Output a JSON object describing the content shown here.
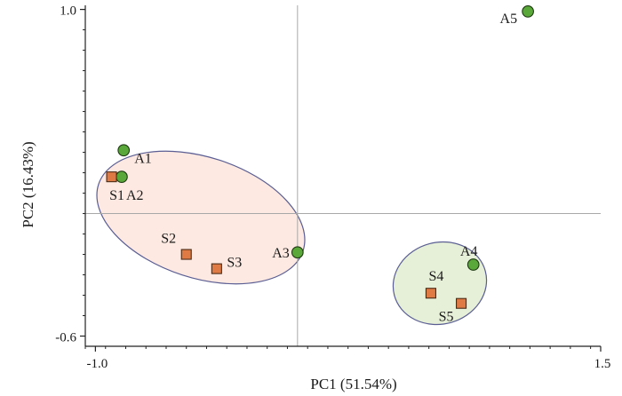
{
  "chart_data": {
    "type": "scatter",
    "title": "",
    "xlabel": "PC1 (51.54%)",
    "ylabel": "PC2 (16.43%)",
    "xlim": [
      -1.05,
      1.5
    ],
    "ylim": [
      -0.65,
      1.02
    ],
    "x_ticks": [
      {
        "value": -1.0,
        "label": "-1.0"
      },
      {
        "value": 1.5,
        "label": "1.5"
      }
    ],
    "y_ticks": [
      {
        "value": 1.0,
        "label": "1.0"
      },
      {
        "value": -0.6,
        "label": "-0.6"
      }
    ],
    "grid": false,
    "reference_lines": {
      "x": 0.0,
      "y": 0.0
    },
    "series": [
      {
        "marker": "circle",
        "color": "#5aa83a",
        "points": [
          {
            "label": "A1",
            "x": -0.86,
            "y": 0.31
          },
          {
            "label": "A2",
            "x": -0.87,
            "y": 0.18
          },
          {
            "label": "A3",
            "x": 0.0,
            "y": -0.19
          },
          {
            "label": "A4",
            "x": 0.87,
            "y": -0.25
          },
          {
            "label": "A5",
            "x": 1.14,
            "y": 0.99
          }
        ]
      },
      {
        "marker": "square",
        "color": "#e07a45",
        "points": [
          {
            "label": "S1",
            "x": -0.92,
            "y": 0.18
          },
          {
            "label": "S2",
            "x": -0.55,
            "y": -0.2
          },
          {
            "label": "S3",
            "x": -0.4,
            "y": -0.27
          },
          {
            "label": "S4",
            "x": 0.66,
            "y": -0.39
          },
          {
            "label": "S5",
            "x": 0.81,
            "y": -0.44
          }
        ]
      }
    ],
    "groups": [
      {
        "members": [
          "A1",
          "A2",
          "S1",
          "S2",
          "S3",
          "A3"
        ],
        "fill": "#fde9e2",
        "stroke": "#5a5e93"
      },
      {
        "members": [
          "A4",
          "S4",
          "S5"
        ],
        "fill": "#e6efd7",
        "stroke": "#5a5e93"
      }
    ]
  }
}
